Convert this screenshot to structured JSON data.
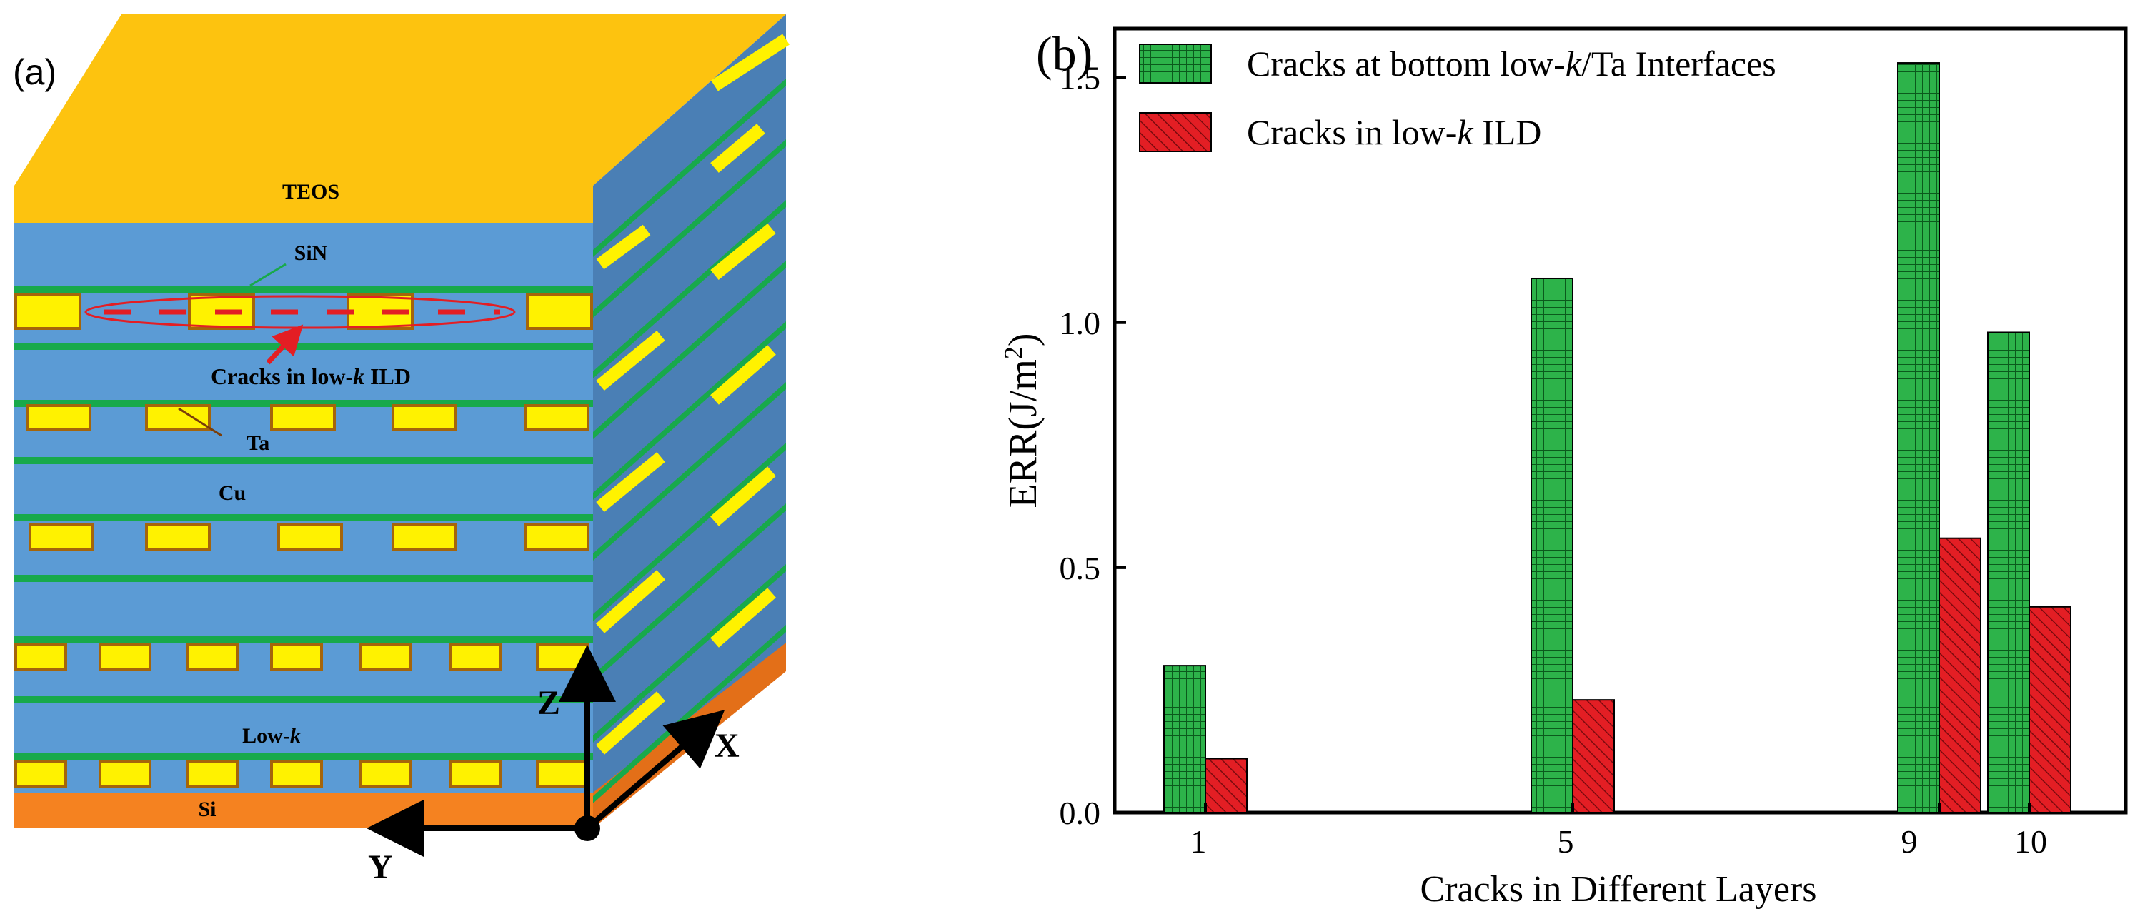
{
  "panel_a": {
    "label": "(a)",
    "layers": {
      "top": "TEOS",
      "barrier": "SiN",
      "crack": "Cracks in low-",
      "crack_italic": "k",
      "crack_suffix": " ILD",
      "liner": "Ta",
      "metal": "Cu",
      "dielectric": "Low-",
      "dielectric_italic": "k",
      "substrate": "Si"
    },
    "axes": {
      "z": "Z",
      "x": "X",
      "y": "Y"
    },
    "colors": {
      "teos": "#FDC30F",
      "lowk": "#5B9BD5",
      "lowk_side": "#4A7FB5",
      "sin": "#18A94B",
      "cu": "#FFF200",
      "ta": "#A5650A",
      "si": "#F58220",
      "crack": "#E31E24"
    }
  },
  "chart_data": {
    "type": "bar",
    "panel_label": "(b)",
    "categories": [
      "1",
      "5",
      "9",
      "10"
    ],
    "series": [
      {
        "name_prefix": "Cracks at bottom low-",
        "name_italic": "k",
        "name_suffix": "/Ta Interfaces",
        "values": [
          0.3,
          1.09,
          1.53,
          0.98
        ],
        "color": "#2DB34A",
        "pattern": "grid"
      },
      {
        "name_prefix": "Cracks in low-",
        "name_italic": "k",
        "name_suffix": " ILD",
        "values": [
          0.11,
          0.23,
          0.56,
          0.42
        ],
        "color": "#E31E24",
        "pattern": "hatch"
      }
    ],
    "xlabel": "Cracks in Different Layers",
    "ylabel_prefix": "ERR(J/m",
    "ylabel_sup": "2",
    "ylabel_suffix": ")",
    "ylim": [
      0.0,
      1.5
    ],
    "yticks": [
      "0.0",
      "0.5",
      "1.0",
      "1.5"
    ],
    "legend_position": "top",
    "grid": false
  }
}
